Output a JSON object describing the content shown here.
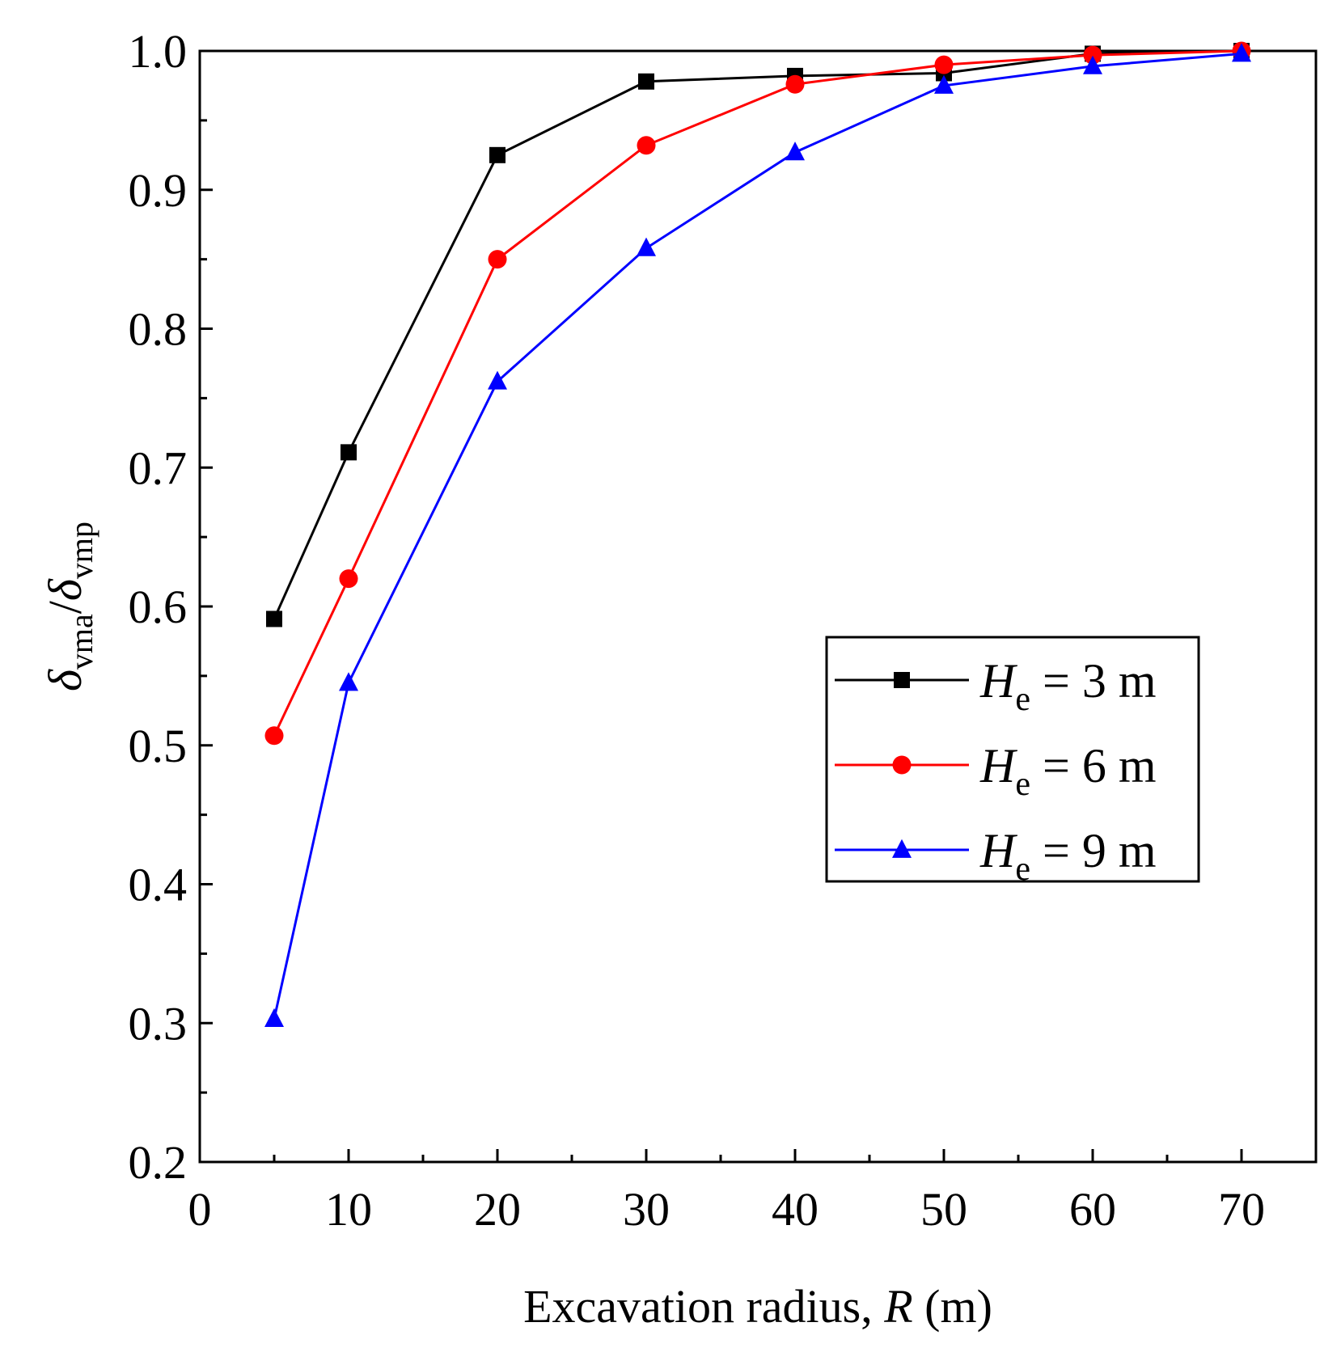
{
  "chart_data": {
    "type": "line",
    "title": "",
    "xlabel": {
      "prefix": "Excavation radius, ",
      "symbol": "R",
      "suffix": " (m)"
    },
    "ylabel": {
      "num_symbol": "δ",
      "num_sub": "vma",
      "slash": "/",
      "den_symbol": "δ",
      "den_sub": "vmp"
    },
    "xlim": [
      0,
      75
    ],
    "ylim": [
      0.2,
      1.0
    ],
    "xticks": [
      0,
      10,
      20,
      30,
      40,
      50,
      60,
      70
    ],
    "xtick_labels": [
      "0",
      "10",
      "20",
      "30",
      "40",
      "50",
      "60",
      "70"
    ],
    "xminor": [
      5,
      15,
      25,
      35,
      45,
      55,
      65,
      75
    ],
    "yticks": [
      0.2,
      0.3,
      0.4,
      0.5,
      0.6,
      0.7,
      0.8,
      0.9,
      1.0
    ],
    "ytick_labels": [
      "0.2",
      "0.3",
      "0.4",
      "0.5",
      "0.6",
      "0.7",
      "0.8",
      "0.9",
      "1.0"
    ],
    "yminor": [
      0.25,
      0.35,
      0.45,
      0.55,
      0.65,
      0.75,
      0.85,
      0.95
    ],
    "grid": false,
    "legend_position": "center-right",
    "series": [
      {
        "name": "He = 3 m",
        "legend": {
          "symbol": "H",
          "sub": "e",
          "text": " = 3 m"
        },
        "color": "#000000",
        "marker": "square",
        "x": [
          5,
          10,
          20,
          30,
          40,
          50,
          60,
          70
        ],
        "y": [
          0.591,
          0.711,
          0.925,
          0.978,
          0.982,
          0.984,
          0.998,
          1.0
        ]
      },
      {
        "name": "He = 6 m",
        "legend": {
          "symbol": "H",
          "sub": "e",
          "text": " = 6 m"
        },
        "color": "#ff0000",
        "marker": "circle",
        "x": [
          5,
          10,
          20,
          30,
          40,
          50,
          60,
          70
        ],
        "y": [
          0.507,
          0.62,
          0.85,
          0.932,
          0.976,
          0.99,
          0.997,
          1.0
        ]
      },
      {
        "name": "He = 9 m",
        "legend": {
          "symbol": "H",
          "sub": "e",
          "text": " = 9 m"
        },
        "color": "#0000ff",
        "marker": "triangle",
        "x": [
          5,
          10,
          20,
          30,
          40,
          50,
          60,
          70
        ],
        "y": [
          0.303,
          0.545,
          0.762,
          0.858,
          0.927,
          0.975,
          0.989,
          0.998
        ]
      }
    ]
  }
}
